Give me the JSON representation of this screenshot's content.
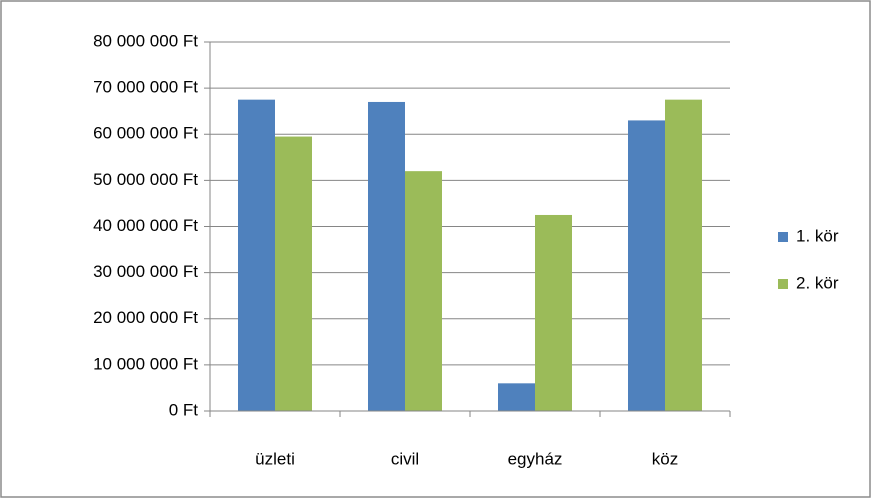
{
  "chart_data": {
    "type": "bar",
    "categories": [
      "üzleti",
      "civil",
      "egyház",
      "köz"
    ],
    "series": [
      {
        "name": "1. kör",
        "color": "#4f81bd",
        "values": [
          67500000,
          67000000,
          6000000,
          63000000
        ]
      },
      {
        "name": "2. kör",
        "color": "#9bbb59",
        "values": [
          59500000,
          52000000,
          42500000,
          67500000
        ]
      }
    ],
    "ylim": [
      0,
      80000000
    ],
    "yticks": [
      {
        "value": 0,
        "label": "0 Ft"
      },
      {
        "value": 10000000,
        "label": "10 000 000 Ft"
      },
      {
        "value": 20000000,
        "label": "20 000 000 Ft"
      },
      {
        "value": 30000000,
        "label": "30 000 000 Ft"
      },
      {
        "value": 40000000,
        "label": "40 000 000 Ft"
      },
      {
        "value": 50000000,
        "label": "50 000 000 Ft"
      },
      {
        "value": 60000000,
        "label": "60 000 000 Ft"
      },
      {
        "value": 70000000,
        "label": "70 000 000 Ft"
      },
      {
        "value": 80000000,
        "label": "80 000 000 Ft"
      }
    ],
    "grid": true,
    "legend": "right"
  }
}
